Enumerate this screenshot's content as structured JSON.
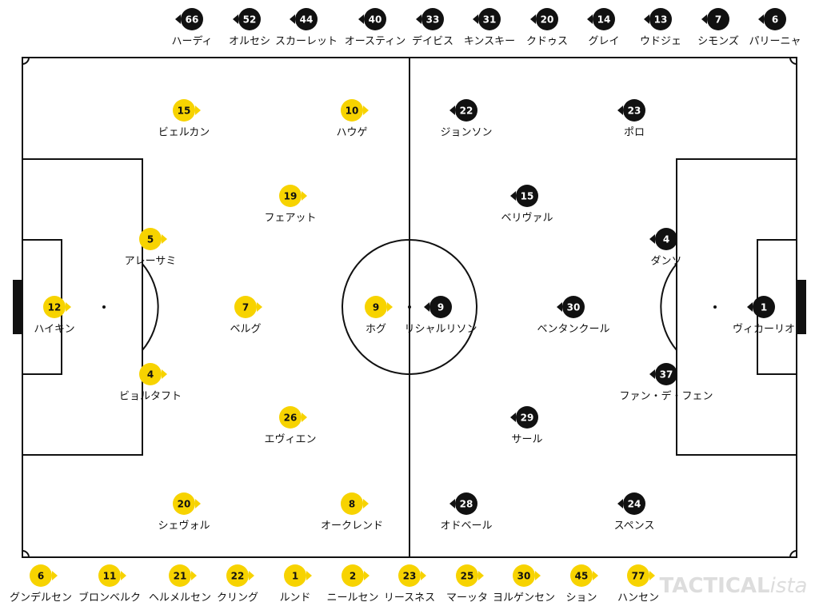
{
  "bench_top": [
    {
      "number": 66,
      "name": "ハーディ"
    },
    {
      "number": 52,
      "name": "オルセシ"
    },
    {
      "number": 44,
      "name": "スカーレット"
    },
    {
      "number": 40,
      "name": "オースティン"
    },
    {
      "number": 33,
      "name": "デイビス"
    },
    {
      "number": 31,
      "name": "キンスキー"
    },
    {
      "number": 20,
      "name": "クドゥス"
    },
    {
      "number": 14,
      "name": "グレイ"
    },
    {
      "number": 13,
      "name": "ウドジェ"
    },
    {
      "number": 7,
      "name": "シモンズ"
    },
    {
      "number": 6,
      "name": "パリーニャ"
    }
  ],
  "home": [
    {
      "number": 15,
      "name": "ビェルカン"
    },
    {
      "number": 10,
      "name": "ハウゲ"
    },
    {
      "number": 19,
      "name": "フェアット"
    },
    {
      "number": 5,
      "name": "アレーサミ"
    },
    {
      "number": 12,
      "name": "ハイキン"
    },
    {
      "number": 7,
      "name": "ベルグ"
    },
    {
      "number": 9,
      "name": "ホグ"
    },
    {
      "number": 4,
      "name": "ビョルタフト"
    },
    {
      "number": 26,
      "name": "エヴィエン"
    },
    {
      "number": 20,
      "name": "シェヴォル"
    },
    {
      "number": 8,
      "name": "オークレンド"
    }
  ],
  "away": [
    {
      "number": 22,
      "name": "ジョンソン"
    },
    {
      "number": 23,
      "name": "ポロ"
    },
    {
      "number": 15,
      "name": "ベリヴァル"
    },
    {
      "number": 4,
      "name": "ダンソ"
    },
    {
      "number": 9,
      "name": "リシャルリソン"
    },
    {
      "number": 30,
      "name": "ベンタンクール"
    },
    {
      "number": 1,
      "name": "ヴィカーリオ"
    },
    {
      "number": 37,
      "name": "ファン・デ・フェン"
    },
    {
      "number": 29,
      "name": "サール"
    },
    {
      "number": 28,
      "name": "オドベール"
    },
    {
      "number": 24,
      "name": "スペンス"
    }
  ],
  "bench_bottom": [
    {
      "number": 6,
      "name": "グンデルセン"
    },
    {
      "number": 11,
      "name": "ブロンベルク"
    },
    {
      "number": 21,
      "name": "ヘルメルセン"
    },
    {
      "number": 22,
      "name": "クリング"
    },
    {
      "number": 1,
      "name": "ルンド"
    },
    {
      "number": 2,
      "name": "ニールセン"
    },
    {
      "number": 23,
      "name": "リースネス"
    },
    {
      "number": 25,
      "name": "マーッタ"
    },
    {
      "number": 30,
      "name": "ヨルゲンセン"
    },
    {
      "number": 45,
      "name": "ション"
    },
    {
      "number": 77,
      "name": "ハンセン"
    }
  ],
  "watermark": {
    "main": "TACTICAL",
    "suffix": "ista"
  }
}
